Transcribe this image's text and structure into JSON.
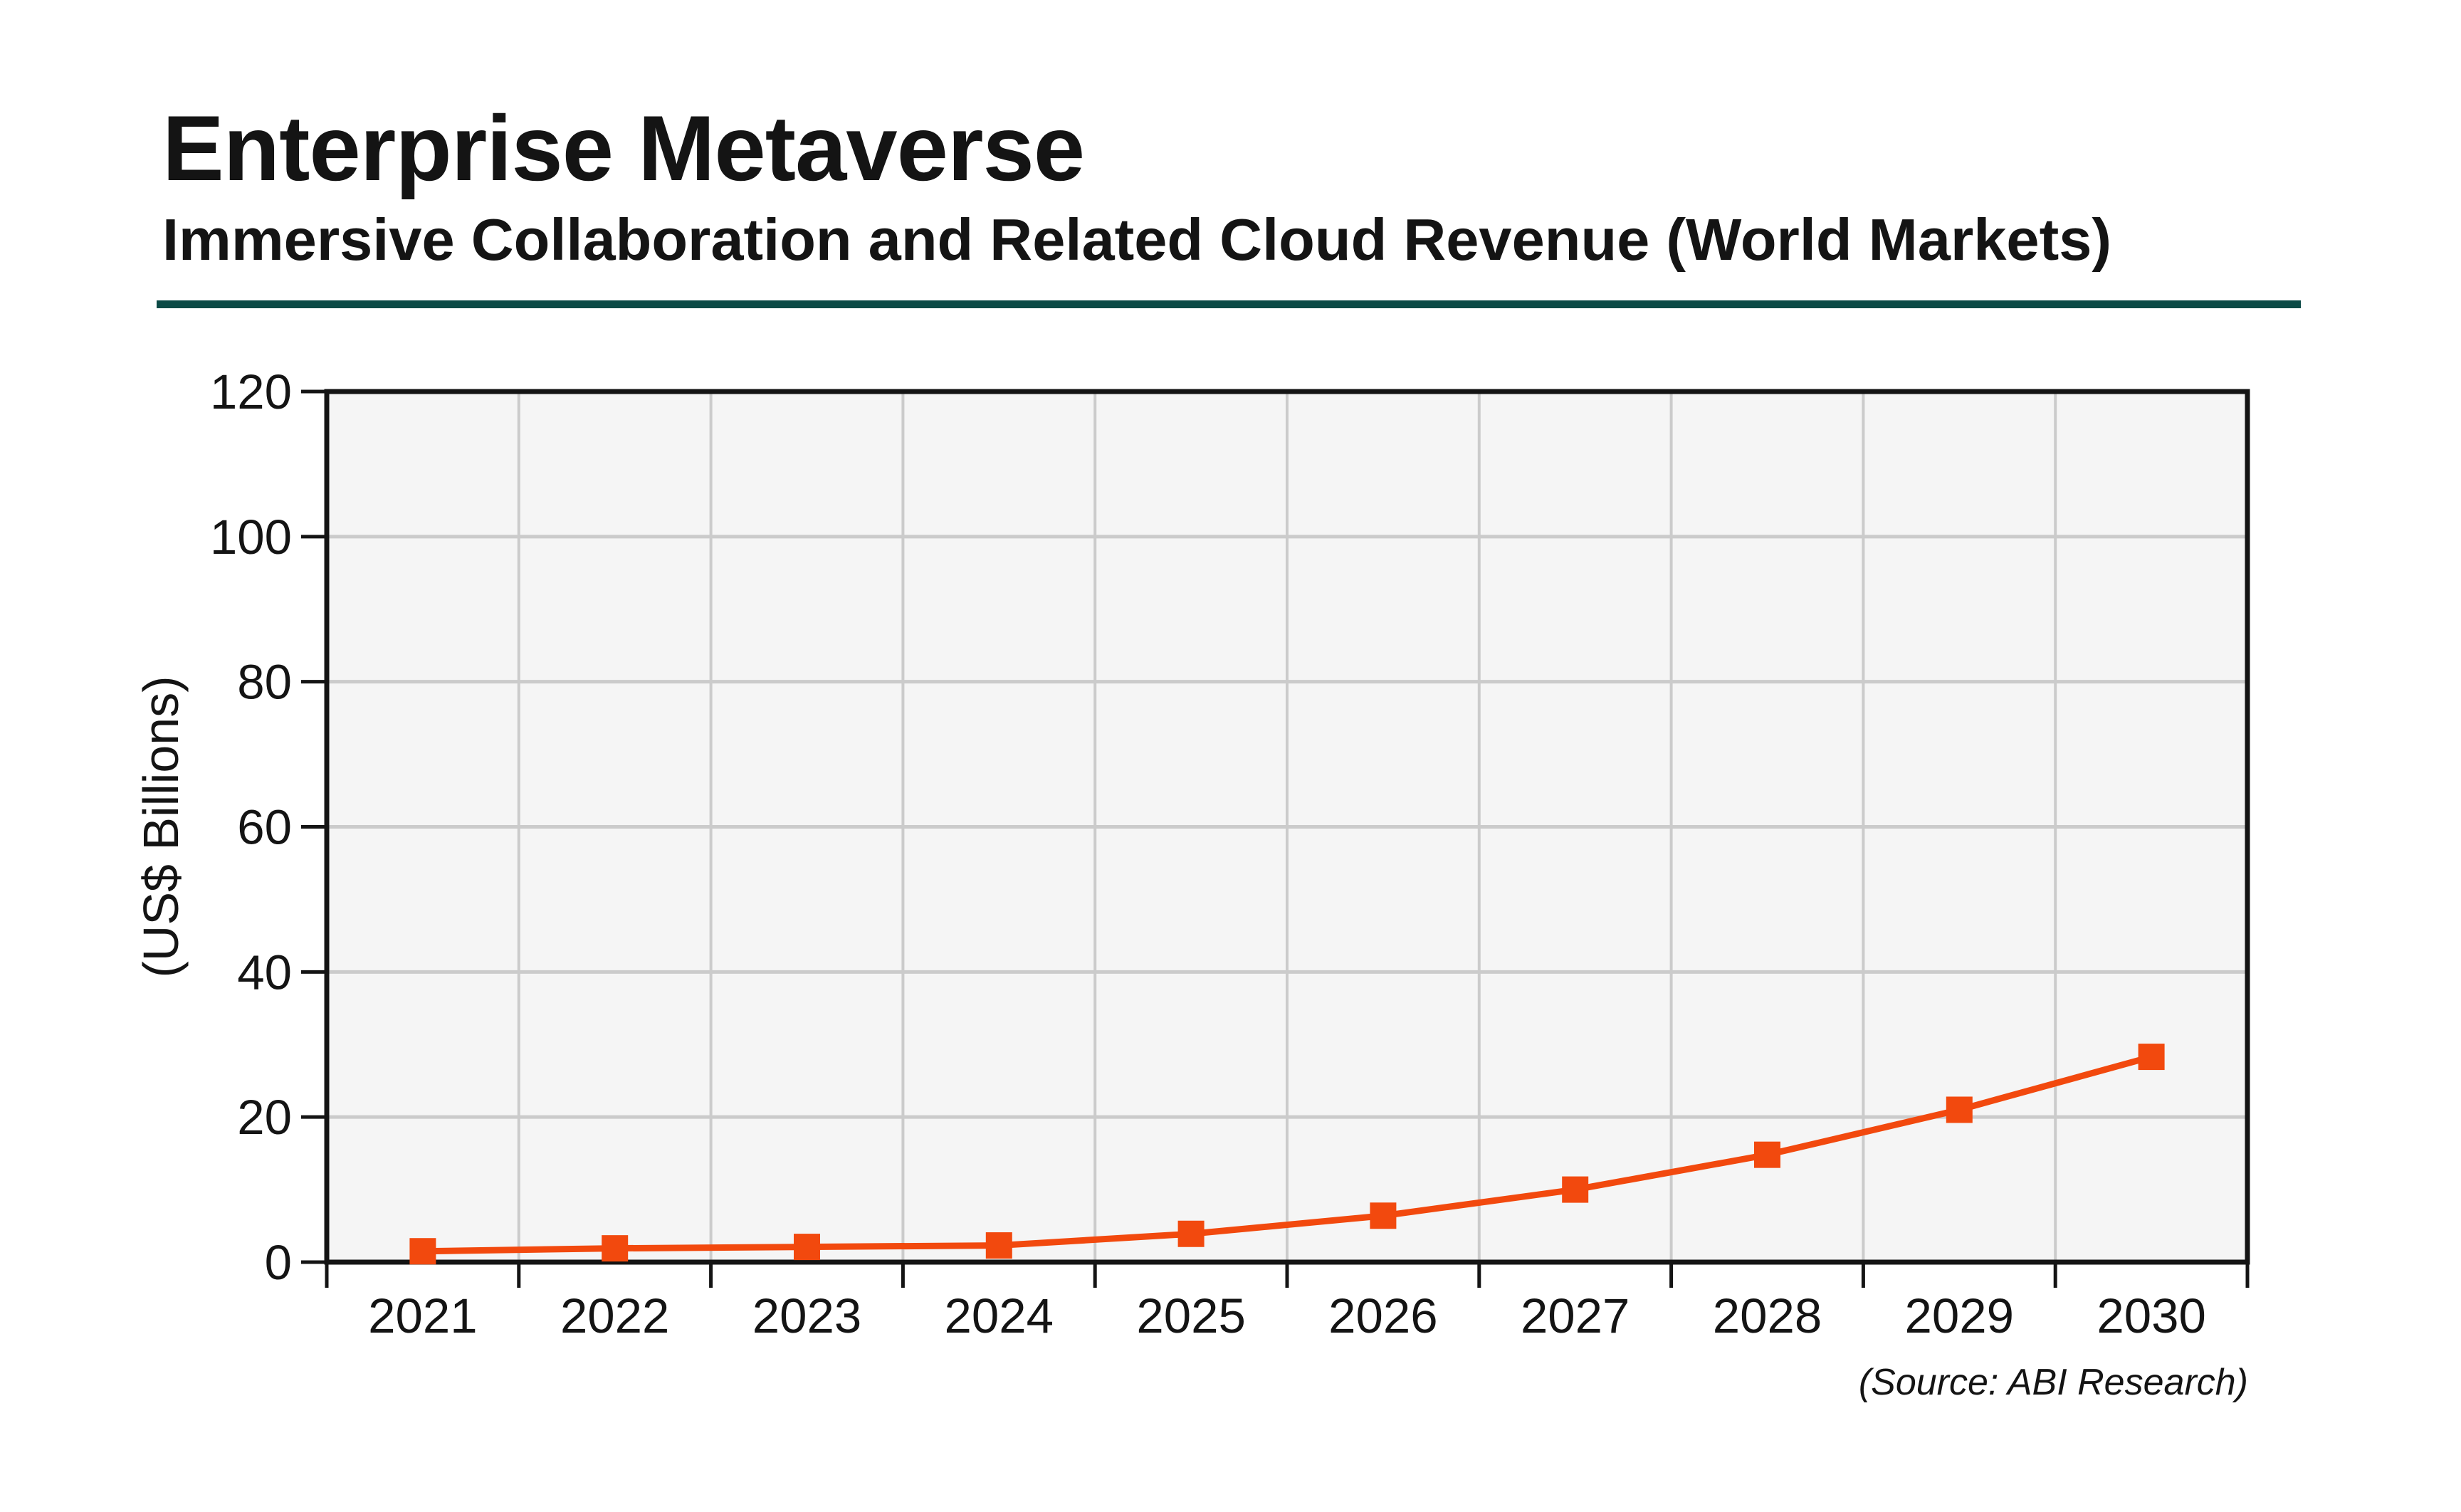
{
  "header": {
    "title": "Enterprise Metaverse",
    "subtitle": "Immersive Collaboration and Related Cloud Revenue (World Markets)"
  },
  "source_note": "(Source: ABI Research)",
  "colors": {
    "accent_orange": "#F2490E",
    "divider_teal": "#0B4A46",
    "plot_background": "#F5F5F5",
    "gridline": "#CBCBCB",
    "axis": "#141414",
    "text": "#141414"
  },
  "chart_data": {
    "type": "line",
    "title": "Enterprise Metaverse",
    "subtitle": "Immersive Collaboration and Related Cloud Revenue (World Markets)",
    "categories": [
      "2021",
      "2022",
      "2023",
      "2024",
      "2025",
      "2026",
      "2027",
      "2028",
      "2029",
      "2030"
    ],
    "series": [
      {
        "name": "Immersive Collaboration and Related Cloud Revenue",
        "values": [
          1.5,
          1.9,
          2.1,
          2.3,
          3.9,
          6.4,
          10.0,
          14.8,
          21.0,
          28.3
        ]
      }
    ],
    "xlabel": "",
    "ylabel": "(US$ Billions)",
    "ylim": [
      0,
      120
    ],
    "yticks": [
      0,
      20,
      40,
      60,
      80,
      100,
      120
    ],
    "grid": true,
    "marker": "square",
    "legend_position": "none"
  }
}
